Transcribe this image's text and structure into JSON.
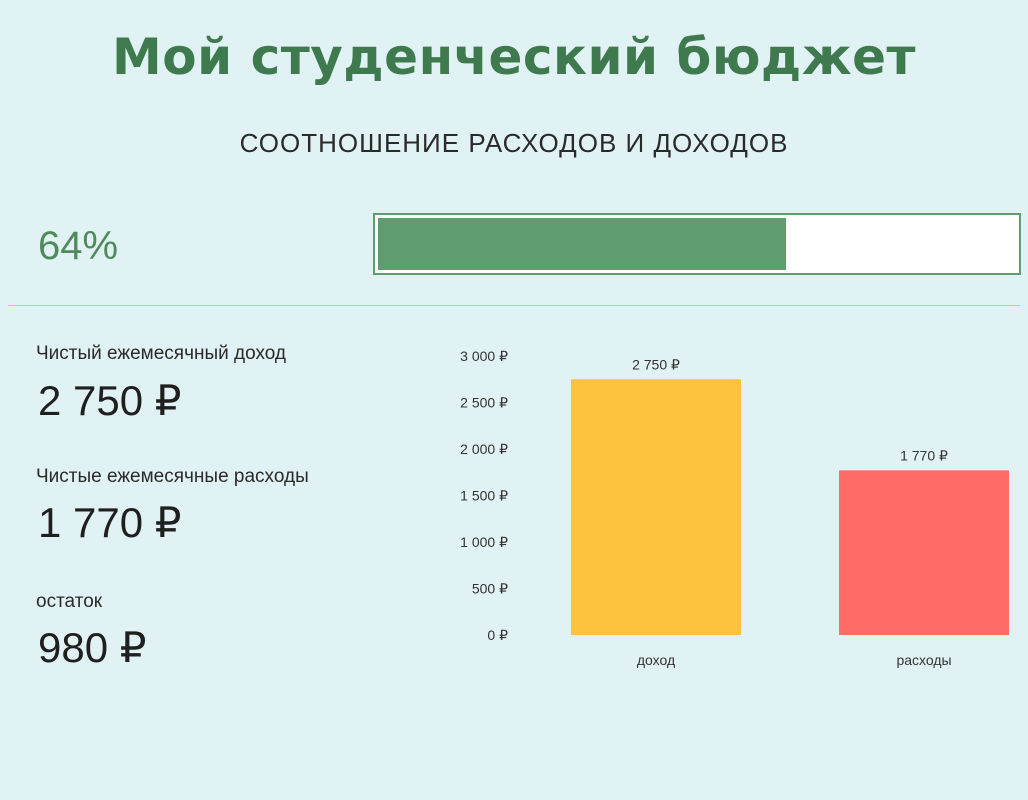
{
  "title": "Мой студенческий бюджет",
  "subtitle": "СООТНОШЕНИЕ РАСХОДОВ И ДОХОДОВ",
  "progress": {
    "label": "64%",
    "value": 0.64
  },
  "colors": {
    "title": "#3f7a4f",
    "progress": "#5e9d6e",
    "divider": "#f4c45a",
    "income_bar": "#fdc33f",
    "expense_bar": "#ff6b66",
    "background": "#e1f2f4"
  },
  "stats": [
    {
      "label": "Чистый ежемесячный доход",
      "value": "2 750 ₽"
    },
    {
      "label": "Чистые ежемесячные расходы",
      "value": "1 770 ₽"
    },
    {
      "label": "остаток",
      "value": "980 ₽"
    }
  ],
  "chart_data": {
    "type": "bar",
    "categories": [
      "доход",
      "расходы"
    ],
    "values": [
      2750,
      1770
    ],
    "data_labels": [
      "2 750 ₽",
      "1 770 ₽"
    ],
    "bar_colors": [
      "#fdc33f",
      "#ff6b66"
    ],
    "ylim": [
      0,
      3000
    ],
    "y_ticks": [
      0,
      500,
      1000,
      1500,
      2000,
      2500,
      3000
    ],
    "y_tick_labels": [
      "0 ₽",
      "500 ₽",
      "1 000 ₽",
      "1 500 ₽",
      "2 000 ₽",
      "2 500 ₽",
      "3 000 ₽"
    ],
    "grid": false,
    "legend": "none"
  }
}
